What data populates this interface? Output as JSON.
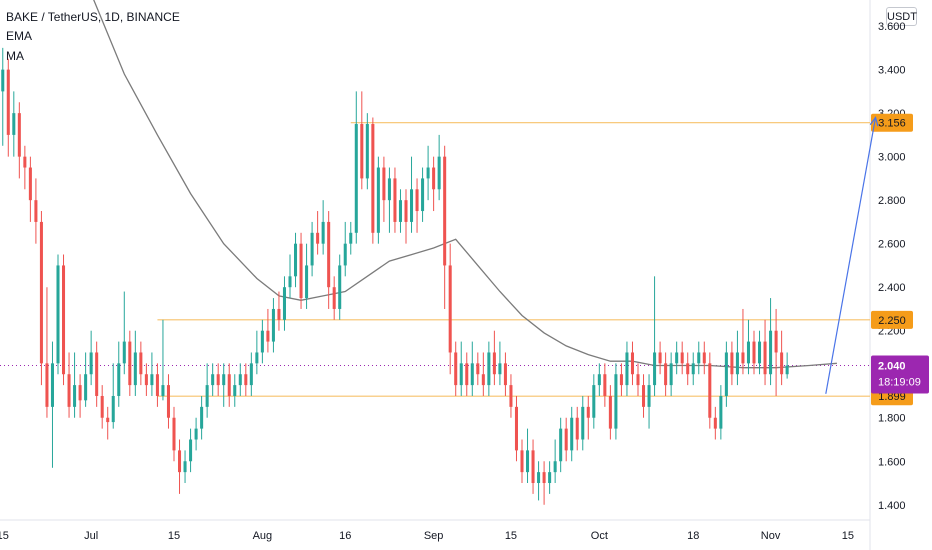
{
  "header": {
    "symbol_line": "BAKE / TetherUS, 1D, BINANCE",
    "indicator_1": "EMA",
    "indicator_2": "MA"
  },
  "currency_button": "USDT",
  "colors": {
    "up": "#26a69a",
    "down": "#ef5350",
    "level_line": "#f7c26b",
    "level_label_bg": "#f59c1a",
    "ma_line": "#7b7b7b",
    "arrow": "#4a74e8",
    "last_price_bg": "#9c27b0",
    "last_price_line": "#9c27b0"
  },
  "chart_data": {
    "type": "candlestick",
    "y_range": [
      1.33,
      3.72
    ],
    "x_range": [
      -0.5,
      157
    ],
    "y_ticks": [
      "3.600",
      "3.400",
      "3.200",
      "3.000",
      "2.800",
      "2.600",
      "2.400",
      "2.200",
      "2.000",
      "1.800",
      "1.600",
      "1.400"
    ],
    "x_ticks": [
      {
        "i": 0,
        "label": "15"
      },
      {
        "i": 16,
        "label": "Jul"
      },
      {
        "i": 31,
        "label": "15"
      },
      {
        "i": 47,
        "label": "Aug"
      },
      {
        "i": 62,
        "label": "16"
      },
      {
        "i": 78,
        "label": "Sep"
      },
      {
        "i": 92,
        "label": "15"
      },
      {
        "i": 108,
        "label": "Oct"
      },
      {
        "i": 125,
        "label": "18"
      },
      {
        "i": 139,
        "label": "Nov"
      },
      {
        "i": 153,
        "label": "15"
      }
    ],
    "levels": [
      {
        "value": 3.156,
        "label": "3.156",
        "from_i": 63
      },
      {
        "value": 2.25,
        "label": "2.250",
        "from_i": 28
      },
      {
        "value": 1.899,
        "label": "1.899",
        "from_i": 28
      }
    ],
    "last_price": {
      "value": 2.04,
      "label": "2.040",
      "countdown": "18:19:09"
    },
    "arrow": {
      "from_i": 149,
      "from_value": 1.91,
      "to_i": 158,
      "to_value": 3.18
    },
    "moving_average": [
      [
        16,
        3.75
      ],
      [
        22,
        3.38
      ],
      [
        28,
        3.1
      ],
      [
        34,
        2.83
      ],
      [
        40,
        2.6
      ],
      [
        46,
        2.44
      ],
      [
        50,
        2.36
      ],
      [
        54,
        2.34
      ],
      [
        58,
        2.36
      ],
      [
        62,
        2.38
      ],
      [
        66,
        2.45
      ],
      [
        70,
        2.52
      ],
      [
        74,
        2.55
      ],
      [
        78,
        2.58
      ],
      [
        82,
        2.62
      ],
      [
        86,
        2.5
      ],
      [
        90,
        2.38
      ],
      [
        94,
        2.27
      ],
      [
        98,
        2.19
      ],
      [
        102,
        2.13
      ],
      [
        106,
        2.09
      ],
      [
        110,
        2.06
      ],
      [
        114,
        2.06
      ],
      [
        118,
        2.04
      ],
      [
        122,
        2.04
      ],
      [
        128,
        2.04
      ],
      [
        134,
        2.03
      ],
      [
        140,
        2.03
      ],
      [
        146,
        2.04
      ],
      [
        151,
        2.05
      ]
    ],
    "candles": [
      [
        3.3,
        3.4,
        3.5,
        3.05
      ],
      [
        3.4,
        3.1,
        3.45,
        3.0
      ],
      [
        3.1,
        3.2,
        3.3,
        3.0
      ],
      [
        3.2,
        3.0,
        3.25,
        2.9
      ],
      [
        3.0,
        2.95,
        3.05,
        2.85
      ],
      [
        2.95,
        2.8,
        3.0,
        2.7
      ],
      [
        2.8,
        2.7,
        2.9,
        2.6
      ],
      [
        2.7,
        2.05,
        2.75,
        1.95
      ],
      [
        2.05,
        1.85,
        2.4,
        1.8
      ],
      [
        1.85,
        2.05,
        2.15,
        1.57
      ],
      [
        2.05,
        2.5,
        2.55,
        2.0
      ],
      [
        2.5,
        2.0,
        2.55,
        1.95
      ],
      [
        2.0,
        1.85,
        2.1,
        1.8
      ],
      [
        1.85,
        1.95,
        2.1,
        1.8
      ],
      [
        1.95,
        1.88,
        2.0,
        1.8
      ],
      [
        1.88,
        2.0,
        2.1,
        1.85
      ],
      [
        2.0,
        2.1,
        2.2,
        1.95
      ],
      [
        2.1,
        1.9,
        2.15,
        1.85
      ],
      [
        1.9,
        1.8,
        1.95,
        1.75
      ],
      [
        1.8,
        1.78,
        1.85,
        1.7
      ],
      [
        1.78,
        1.9,
        2.05,
        1.75
      ],
      [
        1.9,
        2.05,
        2.15,
        1.85
      ],
      [
        2.05,
        2.15,
        2.38,
        2.0
      ],
      [
        2.15,
        1.95,
        2.2,
        1.9
      ],
      [
        1.95,
        2.1,
        2.2,
        1.9
      ],
      [
        2.1,
        2.0,
        2.15,
        1.95
      ],
      [
        2.0,
        1.95,
        2.05,
        1.9
      ],
      [
        1.95,
        2.0,
        2.1,
        1.9
      ],
      [
        2.0,
        1.9,
        2.05,
        1.85
      ],
      [
        1.9,
        1.95,
        2.25,
        1.88
      ],
      [
        1.95,
        1.8,
        2.0,
        1.75
      ],
      [
        1.8,
        1.65,
        1.85,
        1.6
      ],
      [
        1.65,
        1.55,
        1.7,
        1.45
      ],
      [
        1.55,
        1.6,
        1.65,
        1.5
      ],
      [
        1.6,
        1.7,
        1.75,
        1.55
      ],
      [
        1.7,
        1.75,
        1.8,
        1.65
      ],
      [
        1.75,
        1.85,
        1.9,
        1.7
      ],
      [
        1.85,
        1.95,
        2.05,
        1.8
      ],
      [
        1.95,
        2.0,
        2.05,
        1.9
      ],
      [
        2.0,
        1.95,
        2.05,
        1.9
      ],
      [
        1.95,
        2.0,
        2.05,
        1.85
      ],
      [
        2.0,
        1.9,
        2.05,
        1.85
      ],
      [
        1.9,
        1.95,
        2.0,
        1.85
      ],
      [
        1.95,
        2.0,
        2.05,
        1.9
      ],
      [
        2.0,
        1.95,
        2.05,
        1.9
      ],
      [
        1.95,
        2.05,
        2.1,
        1.9
      ],
      [
        2.05,
        2.1,
        2.2,
        2.0
      ],
      [
        2.1,
        2.2,
        2.25,
        2.05
      ],
      [
        2.2,
        2.15,
        2.3,
        2.1
      ],
      [
        2.15,
        2.3,
        2.35,
        2.1
      ],
      [
        2.3,
        2.25,
        2.38,
        2.2
      ],
      [
        2.25,
        2.4,
        2.45,
        2.2
      ],
      [
        2.4,
        2.45,
        2.55,
        2.35
      ],
      [
        2.45,
        2.6,
        2.65,
        2.4
      ],
      [
        2.6,
        2.35,
        2.65,
        2.3
      ],
      [
        2.35,
        2.5,
        2.6,
        2.3
      ],
      [
        2.5,
        2.65,
        2.7,
        2.45
      ],
      [
        2.65,
        2.6,
        2.75,
        2.55
      ],
      [
        2.6,
        2.7,
        2.8,
        2.55
      ],
      [
        2.7,
        2.4,
        2.75,
        2.3
      ],
      [
        2.4,
        2.3,
        2.45,
        2.25
      ],
      [
        2.3,
        2.5,
        2.55,
        2.25
      ],
      [
        2.5,
        2.6,
        2.7,
        2.45
      ],
      [
        2.6,
        2.65,
        2.7,
        2.55
      ],
      [
        2.65,
        3.15,
        3.3,
        2.6
      ],
      [
        3.15,
        2.9,
        3.3,
        2.85
      ],
      [
        2.9,
        3.15,
        3.2,
        2.85
      ],
      [
        3.15,
        2.65,
        3.18,
        2.6
      ],
      [
        2.65,
        2.95,
        3.0,
        2.6
      ],
      [
        2.95,
        2.8,
        3.0,
        2.7
      ],
      [
        2.8,
        2.9,
        2.95,
        2.65
      ],
      [
        2.9,
        2.7,
        2.95,
        2.65
      ],
      [
        2.7,
        2.8,
        2.85,
        2.65
      ],
      [
        2.8,
        2.7,
        2.85,
        2.6
      ],
      [
        2.7,
        2.85,
        3.0,
        2.65
      ],
      [
        2.85,
        2.75,
        2.9,
        2.65
      ],
      [
        2.75,
        2.9,
        2.95,
        2.7
      ],
      [
        2.9,
        2.95,
        3.05,
        2.8
      ],
      [
        2.95,
        2.85,
        3.0,
        2.75
      ],
      [
        2.85,
        3.0,
        3.1,
        2.8
      ],
      [
        3.0,
        2.5,
        3.05,
        2.3
      ],
      [
        2.5,
        2.1,
        2.6,
        2.0
      ],
      [
        2.1,
        1.95,
        2.15,
        1.9
      ],
      [
        1.95,
        2.05,
        2.15,
        1.9
      ],
      [
        2.05,
        1.95,
        2.1,
        1.9
      ],
      [
        1.95,
        2.05,
        2.15,
        1.9
      ],
      [
        2.05,
        2.0,
        2.1,
        1.95
      ],
      [
        2.0,
        1.95,
        2.1,
        1.9
      ],
      [
        1.95,
        2.1,
        2.15,
        1.9
      ],
      [
        2.1,
        2.0,
        2.2,
        1.95
      ],
      [
        2.0,
        2.05,
        2.15,
        1.95
      ],
      [
        2.05,
        1.95,
        2.1,
        1.9
      ],
      [
        1.95,
        1.85,
        2.0,
        1.8
      ],
      [
        1.85,
        1.65,
        1.9,
        1.6
      ],
      [
        1.65,
        1.55,
        1.7,
        1.5
      ],
      [
        1.55,
        1.65,
        1.75,
        1.5
      ],
      [
        1.65,
        1.5,
        1.7,
        1.45
      ],
      [
        1.5,
        1.55,
        1.6,
        1.42
      ],
      [
        1.55,
        1.5,
        1.6,
        1.4
      ],
      [
        1.5,
        1.55,
        1.6,
        1.45
      ],
      [
        1.55,
        1.6,
        1.7,
        1.5
      ],
      [
        1.6,
        1.75,
        1.8,
        1.55
      ],
      [
        1.75,
        1.65,
        1.8,
        1.6
      ],
      [
        1.65,
        1.8,
        1.85,
        1.6
      ],
      [
        1.8,
        1.7,
        1.85,
        1.65
      ],
      [
        1.7,
        1.85,
        1.9,
        1.65
      ],
      [
        1.85,
        1.8,
        1.9,
        1.7
      ],
      [
        1.8,
        1.95,
        2.0,
        1.75
      ],
      [
        1.95,
        2.0,
        2.05,
        1.9
      ],
      [
        2.0,
        1.9,
        2.05,
        1.85
      ],
      [
        1.9,
        1.75,
        1.95,
        1.7
      ],
      [
        1.75,
        2.0,
        2.05,
        1.7
      ],
      [
        2.0,
        1.95,
        2.05,
        1.9
      ],
      [
        1.95,
        2.1,
        2.15,
        1.9
      ],
      [
        2.1,
        2.0,
        2.15,
        1.95
      ],
      [
        2.0,
        1.95,
        2.05,
        1.9
      ],
      [
        1.95,
        1.85,
        2.0,
        1.8
      ],
      [
        1.85,
        1.95,
        2.0,
        1.75
      ],
      [
        1.95,
        2.1,
        2.45,
        1.9
      ],
      [
        2.1,
        2.05,
        2.15,
        2.0
      ],
      [
        2.05,
        1.95,
        2.1,
        1.9
      ],
      [
        1.95,
        2.05,
        2.1,
        1.9
      ],
      [
        2.05,
        2.1,
        2.15,
        2.0
      ],
      [
        2.1,
        2.05,
        2.15,
        2.0
      ],
      [
        2.05,
        2.0,
        2.1,
        1.95
      ],
      [
        2.0,
        2.05,
        2.1,
        1.95
      ],
      [
        2.05,
        2.1,
        2.15,
        2.0
      ],
      [
        2.1,
        2.05,
        2.15,
        2.0
      ],
      [
        2.05,
        1.8,
        2.1,
        1.75
      ],
      [
        1.8,
        1.75,
        1.85,
        1.7
      ],
      [
        1.75,
        1.9,
        1.95,
        1.7
      ],
      [
        1.9,
        2.1,
        2.15,
        1.85
      ],
      [
        2.1,
        2.0,
        2.15,
        1.95
      ],
      [
        2.0,
        2.1,
        2.2,
        1.95
      ],
      [
        2.1,
        2.05,
        2.3,
        2.0
      ],
      [
        2.05,
        2.15,
        2.25,
        2.0
      ],
      [
        2.15,
        2.05,
        2.2,
        2.0
      ],
      [
        2.05,
        2.15,
        2.2,
        2.0
      ],
      [
        2.15,
        2.0,
        2.25,
        1.95
      ],
      [
        2.0,
        2.2,
        2.35,
        1.95
      ],
      [
        2.2,
        2.1,
        2.3,
        1.9
      ],
      [
        2.1,
        2.0,
        2.2,
        1.95
      ],
      [
        2.0,
        2.04,
        2.1,
        1.98
      ]
    ]
  }
}
